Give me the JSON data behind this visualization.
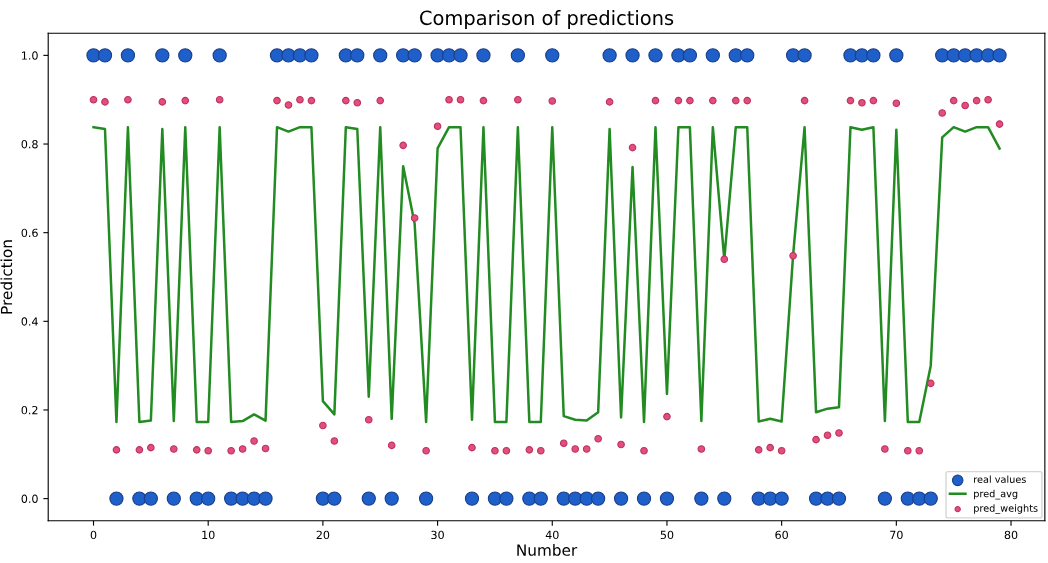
{
  "chart_data": {
    "type": "scatter",
    "title": "Comparison of predictions",
    "xlabel": "Number",
    "ylabel": "Prediction",
    "x": [
      0,
      1,
      2,
      3,
      4,
      5,
      6,
      7,
      8,
      9,
      10,
      11,
      12,
      13,
      14,
      15,
      16,
      17,
      18,
      19,
      20,
      21,
      22,
      23,
      24,
      25,
      26,
      27,
      28,
      29,
      30,
      31,
      32,
      33,
      34,
      35,
      36,
      37,
      38,
      39,
      40,
      41,
      42,
      43,
      44,
      45,
      46,
      47,
      48,
      49,
      50,
      51,
      52,
      53,
      54,
      55,
      56,
      57,
      58,
      59,
      60,
      61,
      62,
      63,
      64,
      65,
      66,
      67,
      68,
      69,
      70,
      71,
      72,
      73,
      74,
      75,
      76,
      77,
      78,
      79
    ],
    "series": [
      {
        "name": "real values",
        "marker": "circle",
        "color": "#1f5fc9",
        "values": [
          1,
          1,
          0,
          1,
          0,
          0,
          1,
          0,
          1,
          0,
          0,
          1,
          0,
          0,
          0,
          0,
          1,
          1,
          1,
          1,
          0,
          0,
          1,
          1,
          0,
          1,
          0,
          1,
          1,
          0,
          1,
          1,
          1,
          0,
          1,
          0,
          0,
          1,
          0,
          0,
          1,
          0,
          0,
          0,
          0,
          1,
          0,
          1,
          0,
          1,
          0,
          1,
          1,
          0,
          1,
          0,
          1,
          1,
          0,
          0,
          0,
          1,
          1,
          0,
          0,
          0,
          1,
          1,
          1,
          0,
          1,
          0,
          0,
          0,
          1,
          1,
          1,
          1,
          1,
          1
        ]
      },
      {
        "name": "pred_avg",
        "type": "line",
        "line_style": "solid",
        "color": "#228b22",
        "values": [
          0.838,
          0.834,
          0.173,
          0.838,
          0.173,
          0.176,
          0.834,
          0.175,
          0.838,
          0.173,
          0.173,
          0.838,
          0.173,
          0.175,
          0.19,
          0.176,
          0.838,
          0.828,
          0.838,
          0.838,
          0.22,
          0.19,
          0.838,
          0.834,
          0.23,
          0.838,
          0.18,
          0.75,
          0.62,
          0.173,
          0.79,
          0.838,
          0.838,
          0.178,
          0.838,
          0.173,
          0.173,
          0.838,
          0.173,
          0.173,
          0.838,
          0.186,
          0.178,
          0.176,
          0.195,
          0.834,
          0.183,
          0.748,
          0.173,
          0.838,
          0.236,
          0.838,
          0.838,
          0.175,
          0.838,
          0.54,
          0.838,
          0.838,
          0.174,
          0.18,
          0.174,
          0.55,
          0.838,
          0.195,
          0.203,
          0.206,
          0.838,
          0.832,
          0.838,
          0.175,
          0.832,
          0.173,
          0.173,
          0.3,
          0.815,
          0.838,
          0.828,
          0.838,
          0.838,
          0.79
        ]
      },
      {
        "name": "pred_weights",
        "marker": "circle",
        "color": "#e0507a",
        "values": [
          0.9,
          0.895,
          0.11,
          0.9,
          0.11,
          0.115,
          0.895,
          0.112,
          0.898,
          0.11,
          0.108,
          0.9,
          0.108,
          0.112,
          0.13,
          0.113,
          0.898,
          0.888,
          0.9,
          0.898,
          0.165,
          0.13,
          0.898,
          0.893,
          0.178,
          0.898,
          0.12,
          0.797,
          0.633,
          0.108,
          0.84,
          0.9,
          0.9,
          0.115,
          0.898,
          0.108,
          0.108,
          0.9,
          0.11,
          0.108,
          0.897,
          0.125,
          0.112,
          0.112,
          0.135,
          0.895,
          0.122,
          0.792,
          0.108,
          0.898,
          0.185,
          0.898,
          0.898,
          0.112,
          0.898,
          0.54,
          0.898,
          0.898,
          0.11,
          0.115,
          0.108,
          0.548,
          0.898,
          0.133,
          0.143,
          0.148,
          0.898,
          0.893,
          0.898,
          0.112,
          0.892,
          0.108,
          0.108,
          0.26,
          0.87,
          0.898,
          0.887,
          0.898,
          0.9,
          0.845
        ]
      }
    ],
    "xlim": [
      -3.95,
      82.95
    ],
    "xticks": [
      0,
      10,
      20,
      30,
      40,
      50,
      60,
      70,
      80
    ],
    "ylim": [
      -0.05,
      1.05
    ],
    "yticks": [
      {
        "value": 0,
        "label": "0.0"
      },
      {
        "value": 0.2,
        "label": "0.2"
      },
      {
        "value": 0.4,
        "label": "0.4"
      },
      {
        "value": 0.6,
        "label": "0.6"
      },
      {
        "value": 0.8,
        "label": "0.8"
      },
      {
        "value": 1,
        "label": "1.0"
      }
    ],
    "grid": false,
    "legend": "bottom right"
  }
}
